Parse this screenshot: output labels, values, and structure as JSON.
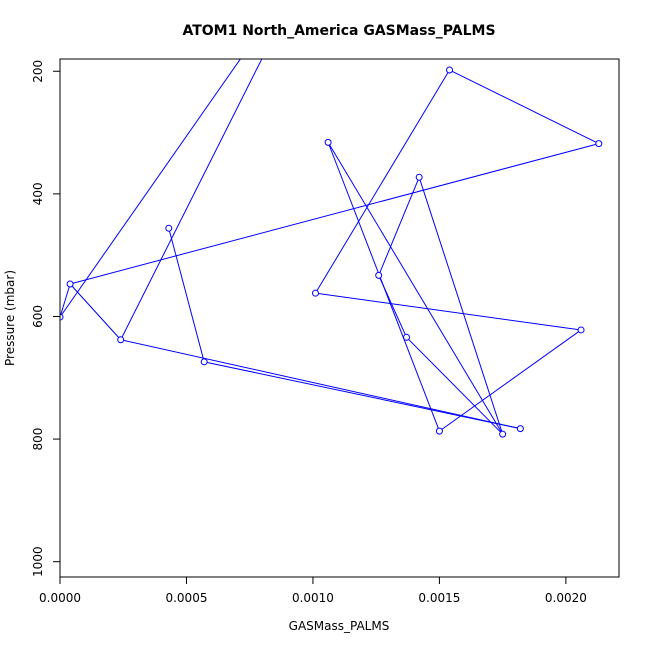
{
  "chart_data": {
    "type": "line",
    "title": "ATOM1 North_America GASMass_PALMS",
    "xlabel": "GASMass_PALMS",
    "ylabel": "Pressure (mbar)",
    "xlim": [
      0.0,
      0.00221
    ],
    "ylim": [
      1025,
      180
    ],
    "y_reversed": true,
    "grid": false,
    "markers": "open-circle",
    "line_color": "#0000ff",
    "x_ticks": [
      {
        "value": 0.0,
        "label": "0.0000"
      },
      {
        "value": 0.0005,
        "label": "0.0005"
      },
      {
        "value": 0.001,
        "label": "0.0010"
      },
      {
        "value": 0.0015,
        "label": "0.0015"
      },
      {
        "value": 0.002,
        "label": "0.0020"
      }
    ],
    "y_ticks": [
      {
        "value": 200,
        "label": "200"
      },
      {
        "value": 400,
        "label": "400"
      },
      {
        "value": 600,
        "label": "600"
      },
      {
        "value": 800,
        "label": "800"
      },
      {
        "value": 1000,
        "label": "1000"
      }
    ],
    "lead_in": [
      {
        "x": 0.00073,
        "y": 170
      },
      {
        "x": 0.00081,
        "y": 170
      }
    ],
    "lead_in_targets": [
      0,
      2
    ],
    "points": [
      {
        "x": 0.0,
        "y": 601
      },
      {
        "x": 4e-05,
        "y": 547
      },
      {
        "x": 0.00024,
        "y": 638
      },
      {
        "x": 0.00043,
        "y": 456
      },
      {
        "x": 0.00057,
        "y": 674
      },
      {
        "x": 0.00175,
        "y": 792
      },
      {
        "x": 0.00142,
        "y": 373
      },
      {
        "x": 0.00126,
        "y": 533
      },
      {
        "x": 0.00106,
        "y": 316
      },
      {
        "x": 0.0015,
        "y": 787
      },
      {
        "x": 0.00206,
        "y": 622
      },
      {
        "x": 0.00101,
        "y": 562
      },
      {
        "x": 0.00154,
        "y": 198
      },
      {
        "x": 0.00213,
        "y": 318
      },
      {
        "x": 0.00137,
        "y": 634
      },
      {
        "x": 0.00182,
        "y": 783
      }
    ],
    "segments": [
      [
        1,
        0
      ],
      [
        1,
        2
      ],
      [
        2,
        15
      ],
      [
        3,
        4
      ],
      [
        4,
        15
      ],
      [
        1,
        13
      ],
      [
        13,
        12
      ],
      [
        12,
        11
      ],
      [
        11,
        10
      ],
      [
        10,
        9
      ],
      [
        9,
        8
      ],
      [
        8,
        5
      ],
      [
        5,
        6
      ],
      [
        6,
        7
      ],
      [
        7,
        14
      ],
      [
        14,
        5
      ]
    ]
  }
}
